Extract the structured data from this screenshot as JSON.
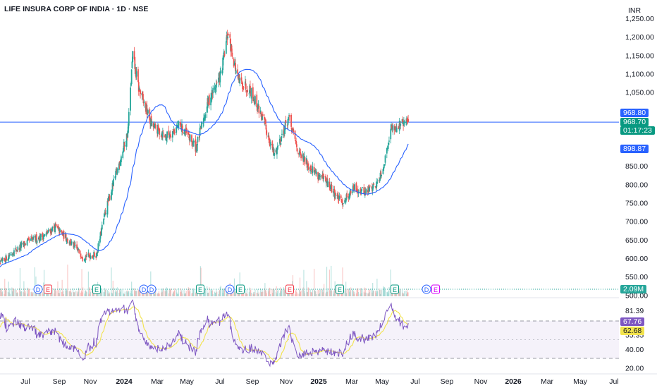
{
  "header": {
    "title": "LIFE INSURA CORP OF INDIA · 1D · NSE",
    "currency": "INR"
  },
  "colors": {
    "up": "#26a69a",
    "down": "#ef5350",
    "ma": "#2962ff",
    "rsi": "#7e57c2",
    "rsi_ma": "#f2e34c",
    "price_line": "#2962ff"
  },
  "price_axis": {
    "ticks": [
      "1,250.00",
      "1,200.00",
      "1,150.00",
      "1,100.00",
      "1,050.00",
      "850.00",
      "800.00",
      "750.00",
      "700.00",
      "650.00",
      "600.00",
      "550.00",
      "500.00"
    ]
  },
  "time_axis": {
    "labels": [
      "Jul",
      "Sep",
      "Nov",
      "2024",
      "Mar",
      "May",
      "Jul",
      "Sep",
      "Nov",
      "2025",
      "Mar",
      "May",
      "Jul",
      "Sep",
      "Nov",
      "2026",
      "Mar",
      "May",
      "Jul"
    ]
  },
  "badges": {
    "price_line_value": "968.80",
    "last_price": "968.70",
    "countdown": "01:17:23",
    "ma_value": "898.87",
    "volume_value": "2.09M",
    "rsi_value": "67.76",
    "rsi_ma_value": "62.68"
  },
  "rsi_axis": {
    "ticks": [
      "81.39",
      "55.35",
      "40.00",
      "20.00"
    ]
  },
  "event_markers": [
    "D",
    "E",
    "E",
    "D",
    "D",
    "E",
    "D",
    "E",
    "E",
    "E",
    "E",
    "D",
    "E"
  ],
  "chart_data": {
    "type": "candlestick",
    "title": "LIFE INSURA CORP OF INDIA · 1D · NSE",
    "currency": "INR",
    "ylim": [
      490,
      1260
    ],
    "x_range": [
      "2023-06",
      "2026-07"
    ],
    "close_path": [
      {
        "date": "2023-06-01",
        "close": 570
      },
      {
        "date": "2023-07-01",
        "close": 612
      },
      {
        "date": "2023-08-01",
        "close": 645
      },
      {
        "date": "2023-09-01",
        "close": 662
      },
      {
        "date": "2023-09-20",
        "close": 685
      },
      {
        "date": "2023-10-20",
        "close": 640
      },
      {
        "date": "2023-11-10",
        "close": 605
      },
      {
        "date": "2023-12-05",
        "close": 610
      },
      {
        "date": "2023-12-20",
        "close": 720
      },
      {
        "date": "2024-01-10",
        "close": 830
      },
      {
        "date": "2024-01-31",
        "close": 940
      },
      {
        "date": "2024-02-09",
        "close": 1150
      },
      {
        "date": "2024-02-20",
        "close": 1060
      },
      {
        "date": "2024-03-15",
        "close": 960
      },
      {
        "date": "2024-04-10",
        "close": 930
      },
      {
        "date": "2024-05-05",
        "close": 960
      },
      {
        "date": "2024-06-04",
        "close": 900
      },
      {
        "date": "2024-06-25",
        "close": 1020
      },
      {
        "date": "2024-07-20",
        "close": 1100
      },
      {
        "date": "2024-08-01",
        "close": 1210
      },
      {
        "date": "2024-08-20",
        "close": 1080
      },
      {
        "date": "2024-09-10",
        "close": 1060
      },
      {
        "date": "2024-10-01",
        "close": 990
      },
      {
        "date": "2024-10-25",
        "close": 880
      },
      {
        "date": "2024-11-20",
        "close": 980
      },
      {
        "date": "2024-12-10",
        "close": 880
      },
      {
        "date": "2025-01-10",
        "close": 830
      },
      {
        "date": "2025-02-01",
        "close": 800
      },
      {
        "date": "2025-02-25",
        "close": 750
      },
      {
        "date": "2025-03-20",
        "close": 790
      },
      {
        "date": "2025-04-10",
        "close": 780
      },
      {
        "date": "2025-04-30",
        "close": 800
      },
      {
        "date": "2025-05-15",
        "close": 860
      },
      {
        "date": "2025-05-25",
        "close": 950
      },
      {
        "date": "2025-06-10",
        "close": 960
      },
      {
        "date": "2025-06-27",
        "close": 968.7
      }
    ],
    "moving_average": {
      "last": 898.87
    },
    "volume": {
      "last": "2.09M"
    },
    "rsi": {
      "value": 67.76,
      "ma": 62.68,
      "bands": [
        70,
        30
      ]
    }
  }
}
